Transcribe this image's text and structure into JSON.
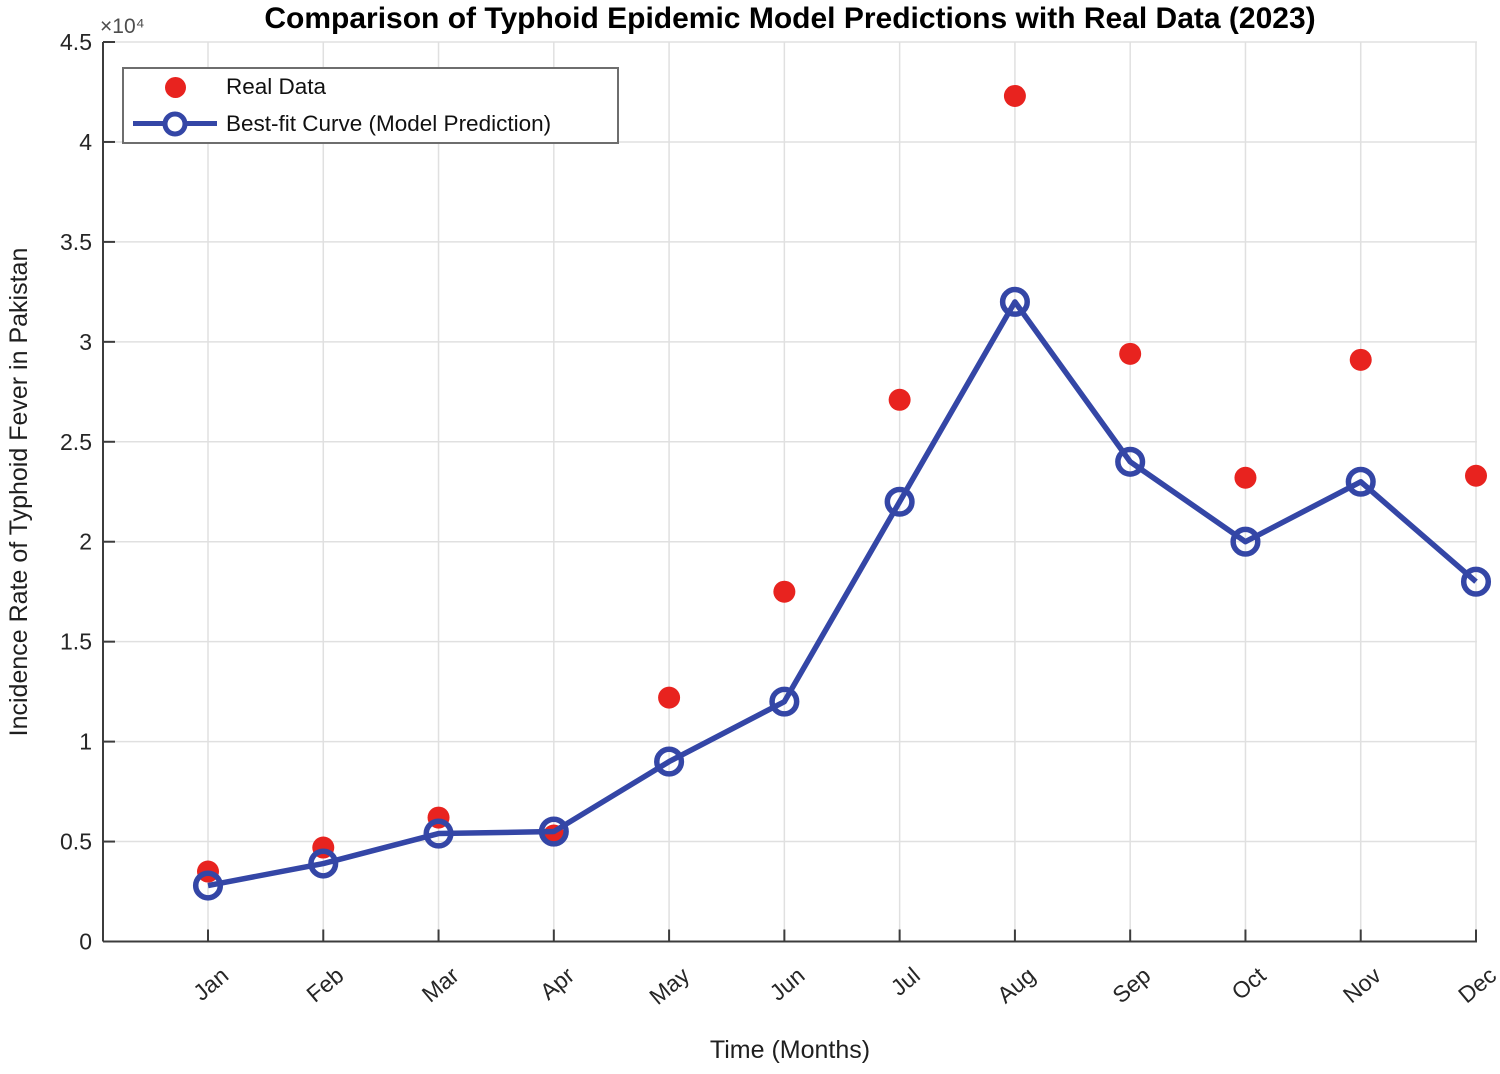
{
  "title": "Comparison of Typhoid Epidemic Model Predictions with Real Data (2023)",
  "axes": {
    "x_label": "Time (Months)",
    "y_label": "Incidence Rate of Typhoid Fever in Pakistan",
    "y_multiplier_label": "×10⁴",
    "y_tick_labels": [
      "0",
      "0.5",
      "1",
      "1.5",
      "2",
      "2.5",
      "3",
      "3.5",
      "4",
      "4.5"
    ]
  },
  "legend": {
    "items": [
      {
        "label": "Real Data",
        "marker": "red-filled-dot"
      },
      {
        "label": "Best-fit Curve (Model Prediction)",
        "marker": "blue-line-open-circle"
      }
    ]
  },
  "colors": {
    "real_data": "#e8231f",
    "model": "#3446a6",
    "grid": "#e0e0e0",
    "axis": "#3c3c3c",
    "tick_text": "#262626",
    "legend_border": "#6e6e6e"
  },
  "chart_data": {
    "type": "line",
    "categories": [
      "Jan",
      "Feb",
      "Mar",
      "Apr",
      "May",
      "Jun",
      "Jul",
      "Aug",
      "Sep",
      "Oct",
      "Nov",
      "Dec"
    ],
    "series": [
      {
        "name": "Real Data",
        "type": "scatter",
        "values": [
          3500,
          4700,
          6200,
          5300,
          12200,
          17500,
          27100,
          42300,
          29400,
          23200,
          29100,
          23300
        ]
      },
      {
        "name": "Best-fit Curve (Model Prediction)",
        "type": "line-with-open-circle-markers",
        "values": [
          2800,
          3900,
          5400,
          5500,
          9000,
          12000,
          22000,
          32000,
          24000,
          20000,
          23000,
          18000
        ]
      }
    ],
    "ylim": [
      0,
      45000
    ],
    "ytick_step": 5000,
    "xtick_angle_deg": 40,
    "grid": true,
    "legend_position": "top-left",
    "title": "Comparison of Typhoid Epidemic Model Predictions with Real Data (2023)",
    "xlabel": "Time (Months)",
    "ylabel": "Incidence Rate of Typhoid Fever in Pakistan"
  }
}
